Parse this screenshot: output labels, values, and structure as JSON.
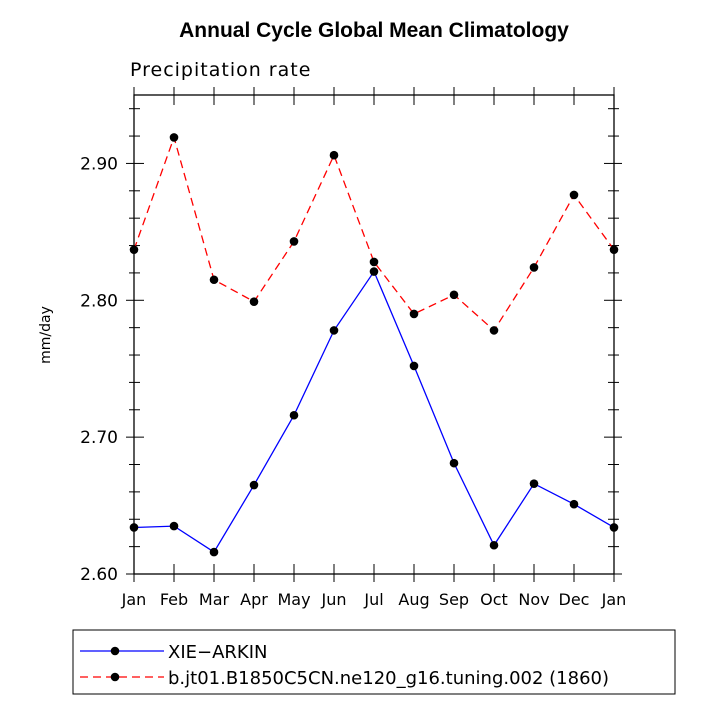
{
  "chart_data": {
    "type": "line",
    "title": "Annual Cycle Global Mean Climatology",
    "subtitle": "Precipitation rate",
    "xlabel": "",
    "ylabel": "mm/day",
    "categories": [
      "Jan",
      "Feb",
      "Mar",
      "Apr",
      "May",
      "Jun",
      "Jul",
      "Aug",
      "Sep",
      "Oct",
      "Nov",
      "Dec",
      "Jan"
    ],
    "ylim": [
      2.6,
      2.95
    ],
    "yticks": [
      2.6,
      2.7,
      2.8,
      2.9
    ],
    "ytick_labels": [
      "2.60",
      "2.70",
      "2.80",
      "2.90"
    ],
    "series": [
      {
        "name": "XIE−ARKIN",
        "color": "#0000ff",
        "dash": "solid",
        "values": [
          2.634,
          2.635,
          2.616,
          2.665,
          2.716,
          2.778,
          2.821,
          2.752,
          2.681,
          2.621,
          2.666,
          2.651,
          2.634
        ]
      },
      {
        "name": "b.jt01.B1850C5CN.ne120_g16.tuning.002 (1860)",
        "color": "#ff0000",
        "dash": "dashed",
        "values": [
          2.837,
          2.919,
          2.815,
          2.799,
          2.843,
          2.906,
          2.828,
          2.79,
          2.804,
          2.778,
          2.824,
          2.877,
          2.837
        ]
      }
    ],
    "legend_position": "bottom"
  }
}
